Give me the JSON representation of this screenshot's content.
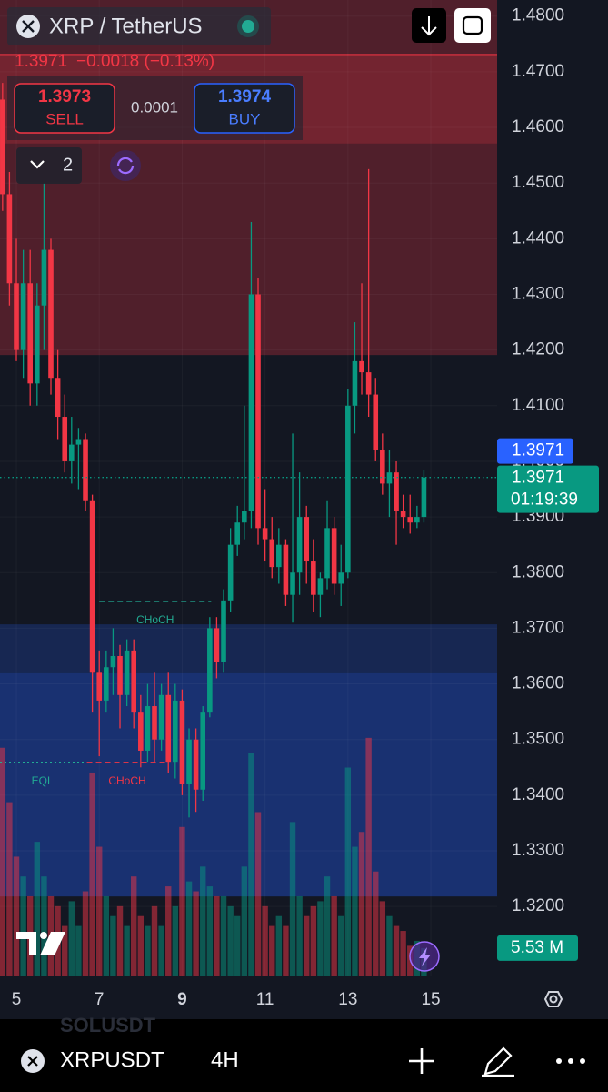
{
  "header": {
    "symbol": "XRP / TetherUS",
    "quote": "1.3971",
    "change": "−0.0018 (−0.13%)",
    "sell_price": "1.3973",
    "sell_label": "SELL",
    "spread": "0.0001",
    "buy_price": "1.3974",
    "buy_label": "BUY",
    "indicators": "2"
  },
  "chart_data": {
    "type": "candlestick",
    "x": [
      4.667,
      4.833,
      5,
      5.167,
      5.333,
      5.5,
      5.667,
      5.833,
      6,
      6.167,
      6.333,
      6.5,
      6.667,
      6.833,
      7,
      7.167,
      7.333,
      7.5,
      7.667,
      7.833,
      8,
      8.167,
      8.333,
      8.5,
      8.667,
      8.833,
      9,
      9.167,
      9.333,
      9.5,
      9.667,
      9.833,
      10,
      10.167,
      10.333,
      10.5,
      10.667,
      10.833,
      11,
      11.167,
      11.333,
      11.5,
      11.667,
      11.833,
      12,
      12.167,
      12.333,
      12.5,
      12.667,
      12.833,
      13,
      13.167,
      13.333,
      13.5,
      13.667,
      13.833,
      14,
      14.167,
      14.333,
      14.5,
      14.667,
      14.833
    ],
    "open": [
      1.465,
      1.448,
      1.432,
      1.42,
      1.432,
      1.414,
      1.428,
      1.438,
      1.415,
      1.408,
      1.4,
      1.403,
      1.404,
      1.393,
      1.362,
      1.357,
      1.363,
      1.365,
      1.358,
      1.366,
      1.355,
      1.348,
      1.356,
      1.35,
      1.358,
      1.346,
      1.357,
      1.342,
      1.35,
      1.341,
      1.355,
      1.37,
      1.364,
      1.375,
      1.385,
      1.389,
      1.391,
      1.43,
      1.388,
      1.386,
      1.381,
      1.385,
      1.376,
      1.38,
      1.39,
      1.382,
      1.376,
      1.379,
      1.388,
      1.378,
      1.38,
      1.41,
      1.418,
      1.416,
      1.412,
      1.402,
      1.396,
      1.398,
      1.391,
      1.39,
      1.389,
      1.39
    ],
    "high": [
      1.468,
      1.452,
      1.44,
      1.438,
      1.438,
      1.432,
      1.45,
      1.44,
      1.42,
      1.412,
      1.408,
      1.406,
      1.405,
      1.394,
      1.366,
      1.366,
      1.37,
      1.367,
      1.368,
      1.368,
      1.358,
      1.36,
      1.362,
      1.36,
      1.362,
      1.36,
      1.359,
      1.352,
      1.352,
      1.356,
      1.372,
      1.372,
      1.377,
      1.388,
      1.392,
      1.41,
      1.443,
      1.433,
      1.395,
      1.39,
      1.388,
      1.386,
      1.405,
      1.398,
      1.392,
      1.386,
      1.38,
      1.393,
      1.39,
      1.385,
      1.413,
      1.425,
      1.432,
      1.4525,
      1.415,
      1.405,
      1.402,
      1.4,
      1.394,
      1.394,
      1.392,
      1.3985
    ],
    "low": [
      1.445,
      1.428,
      1.418,
      1.415,
      1.41,
      1.41,
      1.42,
      1.412,
      1.404,
      1.398,
      1.396,
      1.395,
      1.391,
      1.355,
      1.347,
      1.355,
      1.358,
      1.352,
      1.356,
      1.352,
      1.345,
      1.346,
      1.346,
      1.348,
      1.344,
      1.343,
      1.34,
      1.336,
      1.337,
      1.339,
      1.354,
      1.361,
      1.362,
      1.373,
      1.383,
      1.386,
      1.388,
      1.385,
      1.382,
      1.379,
      1.378,
      1.374,
      1.371,
      1.376,
      1.378,
      1.373,
      1.372,
      1.377,
      1.376,
      1.374,
      1.379,
      1.405,
      1.412,
      1.408,
      1.4,
      1.394,
      1.39,
      1.385,
      1.388,
      1.387,
      1.388,
      1.389
    ],
    "close": [
      1.448,
      1.432,
      1.42,
      1.432,
      1.414,
      1.428,
      1.438,
      1.415,
      1.408,
      1.4,
      1.403,
      1.404,
      1.393,
      1.362,
      1.357,
      1.363,
      1.365,
      1.358,
      1.366,
      1.355,
      1.348,
      1.356,
      1.35,
      1.358,
      1.346,
      1.357,
      1.342,
      1.35,
      1.341,
      1.355,
      1.37,
      1.364,
      1.375,
      1.385,
      1.389,
      1.391,
      1.43,
      1.388,
      1.386,
      1.381,
      1.385,
      1.376,
      1.38,
      1.39,
      1.382,
      1.376,
      1.379,
      1.388,
      1.378,
      1.38,
      1.41,
      1.418,
      1.416,
      1.412,
      1.402,
      1.396,
      1.398,
      1.391,
      1.39,
      1.389,
      1.39,
      1.3971
    ],
    "volume": [
      46,
      35,
      24,
      20,
      16,
      27,
      20,
      16,
      14,
      10,
      15,
      10,
      17,
      41,
      26,
      16,
      12,
      14,
      10,
      20,
      12,
      10,
      14,
      10,
      18,
      14,
      30,
      19,
      17,
      22,
      18,
      16,
      16,
      14,
      12,
      22,
      45,
      33,
      14,
      10,
      12,
      10,
      31,
      16,
      12,
      14,
      15,
      20,
      16,
      12,
      42,
      26,
      29,
      48,
      21,
      15,
      12,
      10,
      9,
      6,
      7,
      5.53
    ],
    "vlim": [
      0,
      50
    ],
    "up_color": "#089981",
    "down_color": "#f23645",
    "xlim": [
      4.605,
      16.6
    ],
    "xticks": [
      5,
      7,
      9,
      11,
      13,
      15
    ],
    "ylim": [
      1.3076,
      1.4829
    ],
    "yticks": [
      {
        "value": 1.32,
        "label": "1.3200"
      },
      {
        "value": 1.33,
        "label": "1.3300"
      },
      {
        "value": 1.34,
        "label": "1.3400"
      },
      {
        "value": 1.35,
        "label": "1.3500"
      },
      {
        "value": 1.36,
        "label": "1.3600"
      },
      {
        "value": 1.37,
        "label": "1.3700"
      },
      {
        "value": 1.38,
        "label": "1.3800"
      },
      {
        "value": 1.39,
        "label": "1.3900"
      },
      {
        "value": 1.4,
        "label": "1.4000"
      },
      {
        "value": 1.41,
        "label": "1.4100"
      },
      {
        "value": 1.42,
        "label": "1.4200"
      },
      {
        "value": 1.43,
        "label": "1.4300"
      },
      {
        "value": 1.44,
        "label": "1.4400"
      },
      {
        "value": 1.45,
        "label": "1.4500"
      },
      {
        "value": 1.46,
        "label": "1.4600"
      },
      {
        "value": 1.47,
        "label": "1.4700"
      },
      {
        "value": 1.48,
        "label": "1.4800"
      }
    ],
    "last_price": 1.3971,
    "countdown": "01:19:39",
    "volume_badge": "5.53 M",
    "zones": [
      {
        "low": 1.4191,
        "high": 1.4829,
        "color": "rgba(242,54,69,0.28)"
      },
      {
        "low": 1.4571,
        "high": 1.4731,
        "color": "rgba(242,54,69,0.22)"
      },
      {
        "low": 1.3218,
        "high": 1.3707,
        "color": "rgba(41,98,255,0.22)"
      },
      {
        "low": 1.3218,
        "high": 1.3619,
        "color": "rgba(41,98,255,0.18)"
      }
    ],
    "annotations": [
      {
        "text": "CHoCH",
        "color": "#22ab94",
        "level": 1.3748,
        "from": 7.0,
        "to": 9.7
      },
      {
        "text": "CHoCH",
        "color": "#f23645",
        "level": 1.3459,
        "from": 6.7,
        "to": 8.65
      },
      {
        "text": "EQL",
        "color": "#22ab94",
        "level": 1.3459,
        "from": 4.605,
        "to": 6.65
      }
    ]
  },
  "toolbar": {
    "symbol": "XRPUSDT",
    "interval": "4H",
    "ghost": "SOLUSDT"
  }
}
